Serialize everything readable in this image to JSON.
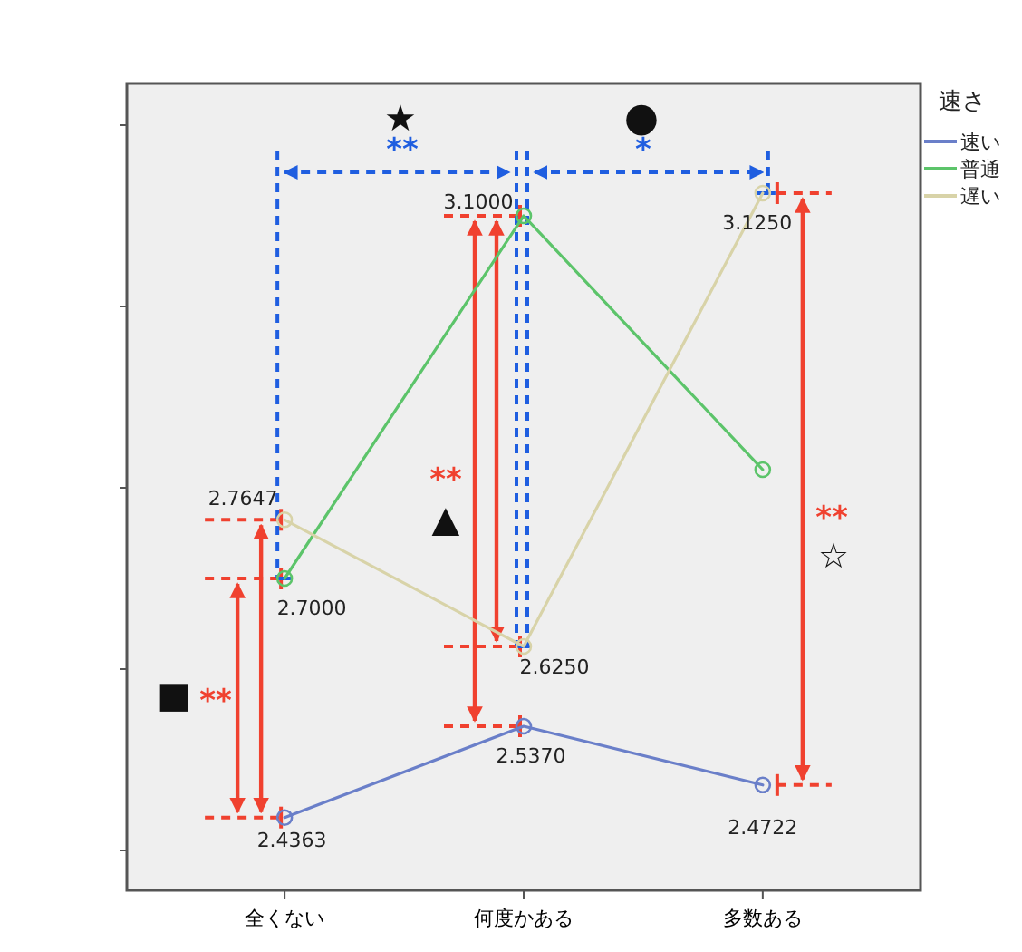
{
  "chart_data": {
    "type": "line",
    "categories": [
      "全くない",
      "何度かある",
      "多数ある"
    ],
    "legend_title": "速さ",
    "series": [
      {
        "name": "速い",
        "color": "#6a7fc9",
        "values": [
          2.4363,
          2.537,
          2.4722
        ],
        "value_labels": [
          "2.4363",
          "2.5370",
          "2.4722"
        ]
      },
      {
        "name": "普通",
        "color": "#5cc46a",
        "values": [
          2.7,
          3.1,
          2.82
        ],
        "value_labels": [
          "2.7000",
          "3.1000",
          null
        ]
      },
      {
        "name": "遅い",
        "color": "#d8d3a8",
        "values": [
          2.7647,
          2.625,
          3.125
        ],
        "value_labels": [
          "2.7647",
          "2.6250",
          "3.1250"
        ]
      }
    ],
    "ylim": [
      2.356,
      3.246
    ],
    "yticks": [
      {
        "value": 2.4,
        "label": null
      },
      {
        "value": 2.6,
        "label": null
      },
      {
        "value": 2.8,
        "label": null
      },
      {
        "value": 3.0,
        "label": null
      },
      {
        "value": 3.2,
        "label": null
      }
    ],
    "annotations": [
      "★",
      "**",
      "●",
      "*",
      "**",
      "▲",
      "**",
      "☆",
      "■",
      "**"
    ],
    "marker": "circle",
    "line_style": "solid",
    "grid": false,
    "legend": "top right"
  }
}
